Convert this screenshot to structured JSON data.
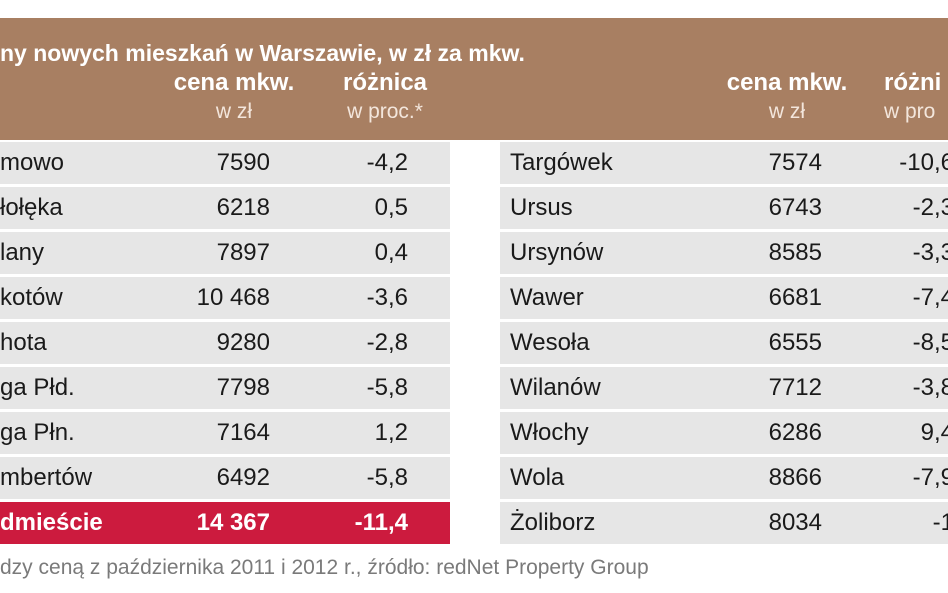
{
  "title": "ny nowych mieszkań w Warszawie, w zł za mkw.",
  "headers": {
    "price_line1": "cena mkw.",
    "price_line2": "w zł",
    "diff_line1": "różnica",
    "diff_line2": "w proc.*",
    "right_price_line1": "cena mkw.",
    "right_price_line2": "w zł",
    "right_diff_line1": "różni",
    "right_diff_line2": "w pro"
  },
  "left_rows": [
    {
      "name": "mowo",
      "price": "7590",
      "diff": "-4,2"
    },
    {
      "name": "łołęka",
      "price": "6218",
      "diff": "0,5"
    },
    {
      "name": "lany",
      "price": "7897",
      "diff": "0,4"
    },
    {
      "name": "kotów",
      "price": "10 468",
      "diff": "-3,6"
    },
    {
      "name": "hota",
      "price": "9280",
      "diff": "-2,8"
    },
    {
      "name": "ga Płd.",
      "price": "7798",
      "diff": "-5,8"
    },
    {
      "name": "ga Płn.",
      "price": "7164",
      "diff": "1,2"
    },
    {
      "name": "mbertów",
      "price": "6492",
      "diff": "-5,8"
    },
    {
      "name": "dmieście",
      "price": "14 367",
      "diff": "-11,4",
      "highlight": true
    }
  ],
  "right_rows": [
    {
      "name": "Targówek",
      "price": "7574",
      "diff": "-10,6"
    },
    {
      "name": "Ursus",
      "price": "6743",
      "diff": "-2,3"
    },
    {
      "name": "Ursynów",
      "price": "8585",
      "diff": "-3,3"
    },
    {
      "name": "Wawer",
      "price": "6681",
      "diff": "-7,4"
    },
    {
      "name": "Wesoła",
      "price": "6555",
      "diff": "-8,5"
    },
    {
      "name": "Wilanów",
      "price": "7712",
      "diff": "-3,8"
    },
    {
      "name": "Włochy",
      "price": "6286",
      "diff": "9,4"
    },
    {
      "name": "Wola",
      "price": "8866",
      "diff": "-7,9"
    },
    {
      "name": "Żoliborz",
      "price": "8034",
      "diff": "-1"
    }
  ],
  "footnote": "dzy ceną z października 2011 i 2012 r., źródło: redNet Property Group",
  "colors": {
    "header_bg": "#a87f62",
    "row_bg": "#e6e6e6",
    "highlight_bg": "#cc1b3e"
  }
}
